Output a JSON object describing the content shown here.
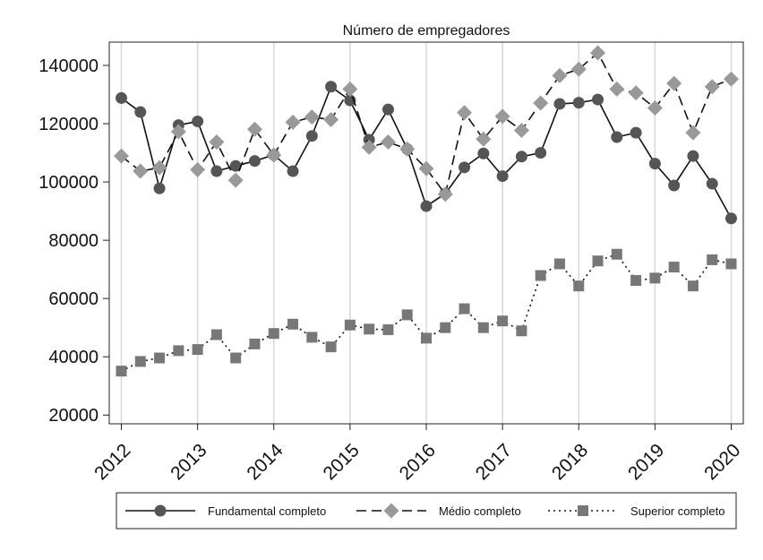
{
  "chart_data": {
    "type": "line",
    "title": "Número de empregadores",
    "xlabel": "",
    "ylabel": "",
    "xlim": [
      2012,
      2020
    ],
    "ylim": [
      17000,
      148000
    ],
    "x_ticks": [
      2012,
      2013,
      2014,
      2015,
      2016,
      2017,
      2018,
      2019,
      2020
    ],
    "x_tick_labels": [
      "2012",
      "2013",
      "2014",
      "2015",
      "2016",
      "2017",
      "2018",
      "2019",
      "2020"
    ],
    "y_ticks": [
      20000,
      40000,
      60000,
      80000,
      100000,
      120000,
      140000
    ],
    "y_tick_labels": [
      "20000",
      "40000",
      "60000",
      "80000",
      "100000",
      "120000",
      "140000"
    ],
    "grid": "vertical",
    "legend_position": "bottom",
    "x": [
      2012,
      2012.25,
      2012.5,
      2012.75,
      2013,
      2013.25,
      2013.5,
      2013.75,
      2014,
      2014.25,
      2014.5,
      2014.75,
      2015,
      2015.25,
      2015.5,
      2015.75,
      2016,
      2016.25,
      2016.5,
      2016.75,
      2017,
      2017.25,
      2017.5,
      2017.75,
      2018,
      2018.25,
      2018.5,
      2018.75,
      2019,
      2019.25,
      2019.5,
      2019.75,
      2020
    ],
    "series": [
      {
        "name": "Fundamental completo",
        "color": "#555555",
        "marker": "circle",
        "dash": "solid",
        "values": [
          128800,
          124000,
          97800,
          119500,
          120800,
          103700,
          105500,
          107200,
          109300,
          103700,
          115800,
          132700,
          128000,
          114500,
          124900,
          111300,
          91700,
          96000,
          105000,
          109800,
          102000,
          108700,
          110000,
          126800,
          127200,
          128300,
          115400,
          116900,
          106300,
          98800,
          108900,
          99400,
          87500
        ]
      },
      {
        "name": "Médio completo",
        "color": "#999999",
        "marker": "diamond",
        "dash": "dashed",
        "values": [
          108900,
          103700,
          104900,
          117300,
          104200,
          113700,
          100600,
          118100,
          109200,
          120500,
          122300,
          121400,
          131900,
          111900,
          113700,
          111300,
          104600,
          95800,
          123800,
          114700,
          122500,
          117700,
          127100,
          136500,
          138700,
          144300,
          131900,
          130600,
          125400,
          133800,
          116900,
          132700,
          135300
        ]
      },
      {
        "name": "Superior completo",
        "color": "#777777",
        "marker": "square",
        "dash": "dotted",
        "values": [
          35100,
          38400,
          39600,
          42100,
          42500,
          47600,
          39600,
          44400,
          48000,
          51200,
          46700,
          43400,
          50900,
          49500,
          49300,
          54400,
          46400,
          50000,
          56500,
          50000,
          52300,
          48900,
          67900,
          71900,
          64300,
          72900,
          75200,
          66200,
          67000,
          70800,
          64300,
          73300,
          71900
        ]
      }
    ]
  }
}
